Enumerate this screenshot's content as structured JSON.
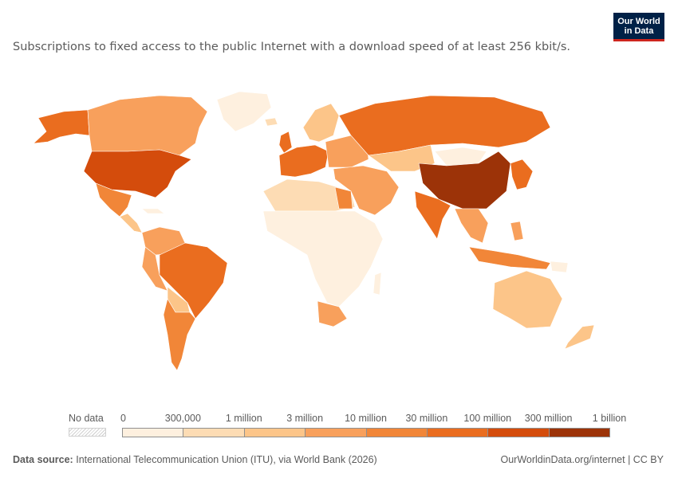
{
  "subtitle": "Subscriptions to fixed access to the public Internet with a download speed of at least 256 kbit/s.",
  "logo": {
    "line1": "Our World",
    "line2": "in Data"
  },
  "legend": {
    "no_data_label": "No data",
    "ticks": [
      "0",
      "300,000",
      "1 million",
      "3 million",
      "10 million",
      "30 million",
      "100 million",
      "300 million",
      "1 billion"
    ],
    "colors": [
      "#fef0df",
      "#fddcb4",
      "#fcc589",
      "#f8a05c",
      "#f18638",
      "#ea6d1f",
      "#d44c0c",
      "#9c3308"
    ]
  },
  "footer": {
    "source_label": "Data source:",
    "source_text": "International Telecommunication Union (ITU), via World Bank (2026)",
    "right_text": "OurWorldinData.org/internet | CC BY"
  },
  "colors": {
    "ocean": "#ffffff",
    "border": "#ffffff"
  }
}
